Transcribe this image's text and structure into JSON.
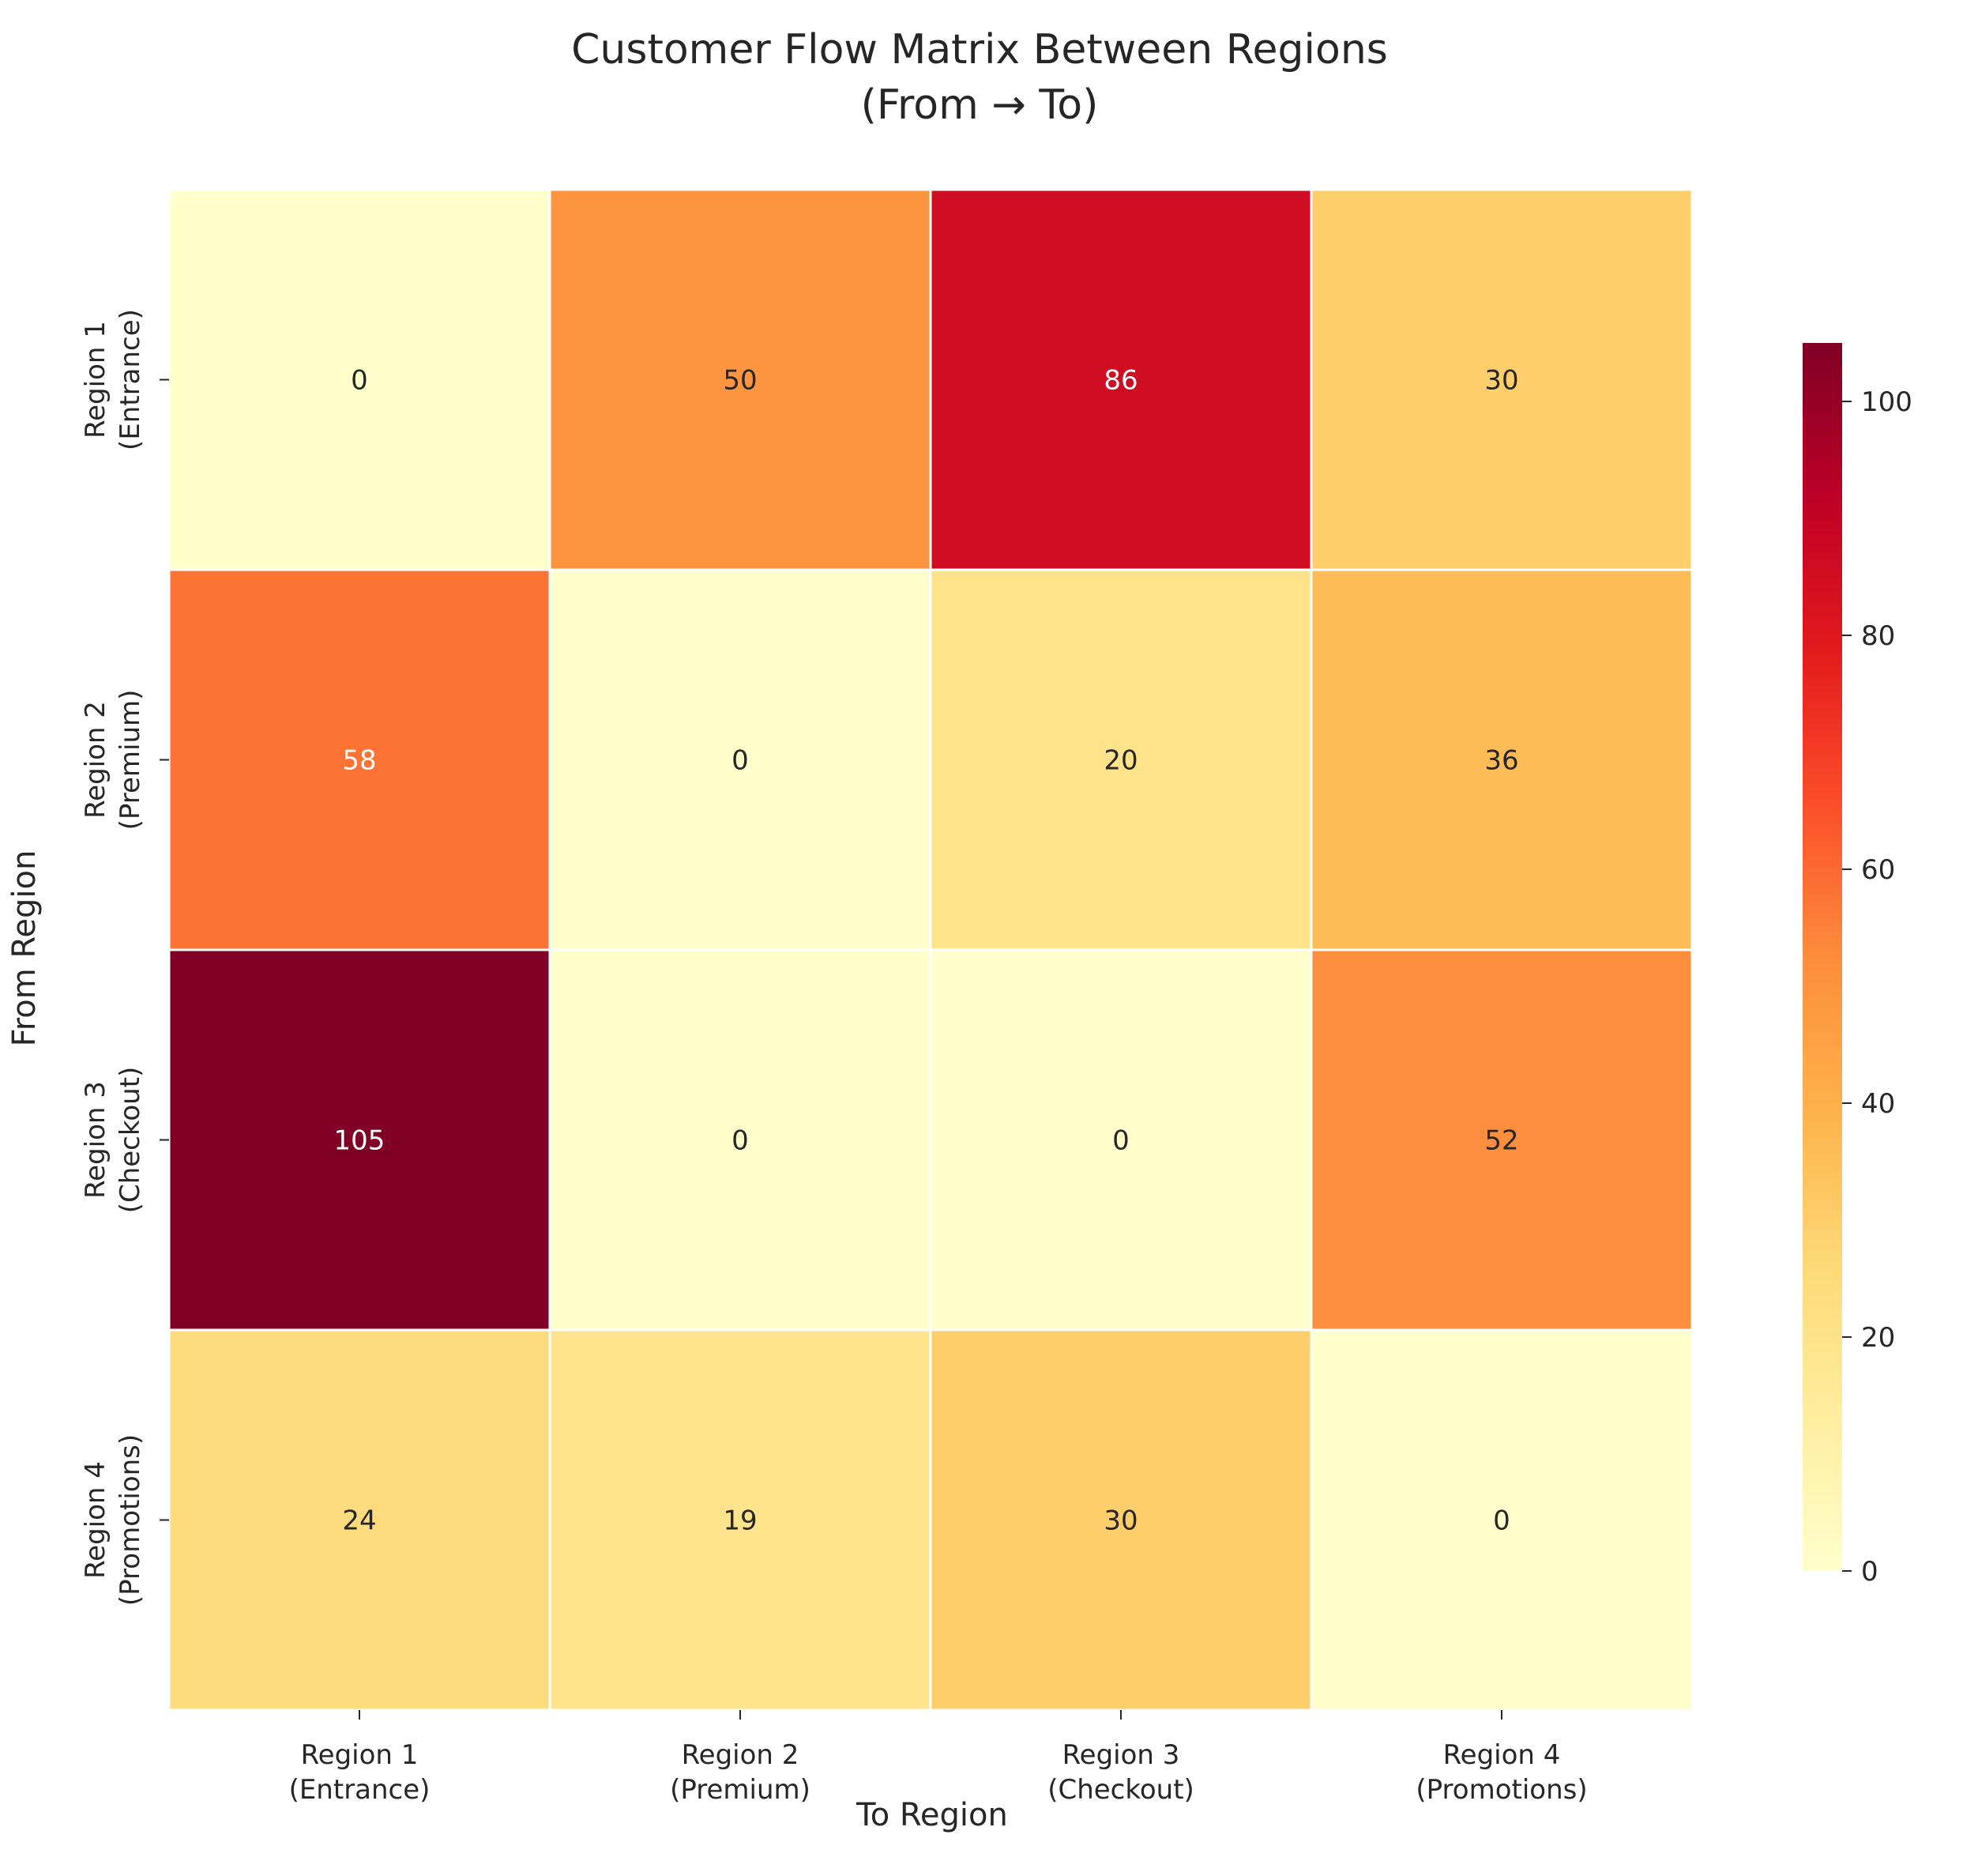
{
  "chart_data": {
    "type": "heatmap",
    "title": "Customer Flow Matrix Between Regions",
    "subtitle": "(From → To)",
    "xlabel": "To Region",
    "ylabel": "From Region",
    "x_categories": [
      {
        "name": "Region 1",
        "sub": "(Entrance)"
      },
      {
        "name": "Region 2",
        "sub": "(Premium)"
      },
      {
        "name": "Region 3",
        "sub": "(Checkout)"
      },
      {
        "name": "Region 4",
        "sub": "(Promotions)"
      }
    ],
    "y_categories": [
      {
        "name": "Region 1",
        "sub": "(Entrance)"
      },
      {
        "name": "Region 2",
        "sub": "(Premium)"
      },
      {
        "name": "Region 3",
        "sub": "(Checkout)"
      },
      {
        "name": "Region 4",
        "sub": "(Promotions)"
      }
    ],
    "values": [
      [
        0,
        50,
        86,
        30
      ],
      [
        58,
        0,
        20,
        36
      ],
      [
        105,
        0,
        0,
        52
      ],
      [
        24,
        19,
        30,
        0
      ]
    ],
    "colorbar": {
      "min": 0,
      "max": 105,
      "ticks": [
        "0",
        "20",
        "40",
        "60",
        "80",
        "100"
      ],
      "colormap": "YlOrRd",
      "colors": [
        "#ffffcc",
        "#ffeda0",
        "#fed976",
        "#feb24c",
        "#fd8d3c",
        "#fc4e2a",
        "#e31a1c",
        "#bd0026",
        "#800026"
      ]
    },
    "grid": false
  }
}
